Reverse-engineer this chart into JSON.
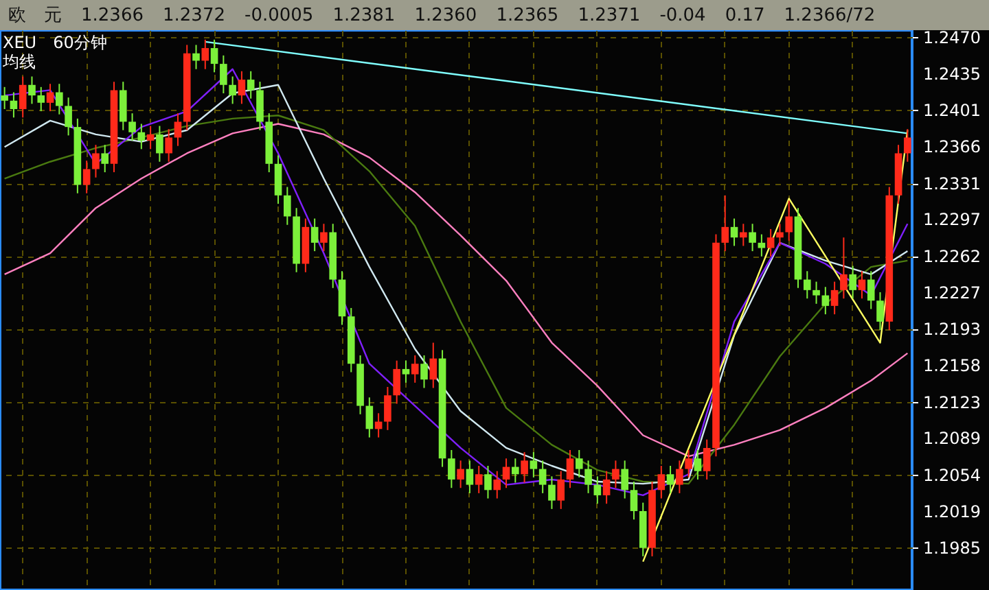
{
  "chart_data": {
    "type": "candlestick",
    "title": "XEU　60分钟",
    "subtitle": "均线",
    "annotations": [
      "欧　元",
      "1.2366",
      "1.2372",
      "-0.0005",
      "1.2381",
      "1.2360",
      "1.2365",
      "1.2371",
      "-0.04",
      "0.17",
      "1.2366/72"
    ],
    "categories": [
      null,
      null,
      null,
      null,
      null,
      null,
      null,
      null,
      null,
      null,
      null,
      null,
      null,
      null,
      null,
      null,
      null,
      null,
      null,
      null,
      null,
      null,
      null,
      null,
      null,
      null,
      null,
      null,
      null,
      null,
      null,
      null,
      null,
      null,
      null,
      null,
      null,
      null,
      null,
      null,
      null,
      null,
      null,
      null,
      null,
      null,
      null,
      null,
      null,
      null,
      null,
      null,
      null,
      null,
      null,
      null,
      null,
      null,
      null,
      null,
      null,
      null,
      null,
      null,
      null,
      null,
      null,
      null,
      null,
      null,
      null,
      null,
      null,
      null,
      null,
      null,
      null,
      null,
      null,
      null,
      null,
      null,
      null,
      null,
      null,
      null,
      null,
      null,
      null,
      null,
      null,
      null,
      null,
      null,
      null,
      null,
      null,
      null,
      null,
      null
    ],
    "ohlc": [
      [
        1.2415,
        1.2423,
        1.2402,
        1.241
      ],
      [
        1.241,
        1.2418,
        1.2394,
        1.2402
      ],
      [
        1.2402,
        1.2433,
        1.2394,
        1.2425
      ],
      [
        1.2425,
        1.2433,
        1.2407,
        1.2415
      ],
      [
        1.2415,
        1.2423,
        1.24,
        1.2408
      ],
      [
        1.2408,
        1.2426,
        1.24,
        1.2418
      ],
      [
        1.2418,
        1.2426,
        1.2397,
        1.2405
      ],
      [
        1.2405,
        1.2413,
        1.2377,
        1.2385
      ],
      [
        1.2385,
        1.2393,
        1.2322,
        1.233
      ],
      [
        1.233,
        1.2353,
        1.2322,
        1.2345
      ],
      [
        1.2345,
        1.2368,
        1.2337,
        1.236
      ],
      [
        1.236,
        1.2368,
        1.2342,
        1.235
      ],
      [
        1.235,
        1.2428,
        1.2342,
        1.242
      ],
      [
        1.242,
        1.2428,
        1.2382,
        1.239
      ],
      [
        1.239,
        1.2398,
        1.2372,
        1.238
      ],
      [
        1.238,
        1.2388,
        1.2364,
        1.2372
      ],
      [
        1.2372,
        1.2386,
        1.2364,
        1.2378
      ],
      [
        1.2378,
        1.2386,
        1.2352,
        1.236
      ],
      [
        1.236,
        1.2383,
        1.2352,
        1.2375
      ],
      [
        1.2375,
        1.2398,
        1.2367,
        1.239
      ],
      [
        1.239,
        1.2463,
        1.2382,
        1.2455
      ],
      [
        1.2455,
        1.2463,
        1.244,
        1.2448
      ],
      [
        1.2448,
        1.2468,
        1.244,
        1.246
      ],
      [
        1.246,
        1.2468,
        1.2437,
        1.2445
      ],
      [
        1.2445,
        1.2453,
        1.2417,
        1.2425
      ],
      [
        1.2425,
        1.2433,
        1.2407,
        1.2415
      ],
      [
        1.2415,
        1.2438,
        1.2407,
        1.243
      ],
      [
        1.243,
        1.2438,
        1.2412,
        1.242
      ],
      [
        1.242,
        1.2428,
        1.2382,
        1.239
      ],
      [
        1.239,
        1.2398,
        1.2342,
        1.235
      ],
      [
        1.235,
        1.2358,
        1.2312,
        1.232
      ],
      [
        1.232,
        1.2328,
        1.2292,
        1.23
      ],
      [
        1.23,
        1.2308,
        1.2247,
        1.2255
      ],
      [
        1.2255,
        1.2298,
        1.2247,
        1.229
      ],
      [
        1.229,
        1.2298,
        1.2267,
        1.2275
      ],
      [
        1.2275,
        1.2293,
        1.2267,
        1.2285
      ],
      [
        1.2285,
        1.2293,
        1.2232,
        1.224
      ],
      [
        1.224,
        1.2248,
        1.2197,
        1.2205
      ],
      [
        1.2205,
        1.2213,
        1.2152,
        1.216
      ],
      [
        1.216,
        1.2168,
        1.2112,
        1.212
      ],
      [
        1.212,
        1.2128,
        1.209,
        1.2098
      ],
      [
        1.2098,
        1.2113,
        1.209,
        1.2105
      ],
      [
        1.2105,
        1.2138,
        1.2097,
        1.213
      ],
      [
        1.213,
        1.2163,
        1.2122,
        1.2155
      ],
      [
        1.2155,
        1.2163,
        1.2142,
        1.215
      ],
      [
        1.215,
        1.2168,
        1.2142,
        1.216
      ],
      [
        1.216,
        1.2168,
        1.2137,
        1.2145
      ],
      [
        1.2145,
        1.218,
        1.2137,
        1.2165
      ],
      [
        1.2165,
        1.2173,
        1.2062,
        1.207
      ],
      [
        1.207,
        1.2078,
        1.2042,
        1.205
      ],
      [
        1.205,
        1.2068,
        1.2042,
        1.206
      ],
      [
        1.206,
        1.2068,
        1.2037,
        1.2045
      ],
      [
        1.2045,
        1.2063,
        1.2037,
        1.2055
      ],
      [
        1.2055,
        1.2063,
        1.2032,
        1.204
      ],
      [
        1.204,
        1.2058,
        1.2032,
        1.205
      ],
      [
        1.205,
        1.207,
        1.2042,
        1.2062
      ],
      [
        1.2062,
        1.207,
        1.2047,
        1.2055
      ],
      [
        1.2055,
        1.2076,
        1.2047,
        1.2068
      ],
      [
        1.2068,
        1.2076,
        1.2052,
        1.206
      ],
      [
        1.206,
        1.2068,
        1.2037,
        1.2045
      ],
      [
        1.2045,
        1.2053,
        1.2022,
        1.203
      ],
      [
        1.203,
        1.2058,
        1.2022,
        1.205
      ],
      [
        1.205,
        1.2078,
        1.2042,
        1.207
      ],
      [
        1.207,
        1.2078,
        1.2052,
        1.206
      ],
      [
        1.206,
        1.2068,
        1.2037,
        1.2045
      ],
      [
        1.2045,
        1.2053,
        1.2027,
        1.2035
      ],
      [
        1.2035,
        1.2058,
        1.2027,
        1.205
      ],
      [
        1.205,
        1.2068,
        1.2042,
        1.206
      ],
      [
        1.206,
        1.2068,
        1.2032,
        1.204
      ],
      [
        1.204,
        1.2048,
        1.2012,
        1.202
      ],
      [
        1.202,
        1.2028,
        1.1977,
        1.1985
      ],
      [
        1.1985,
        1.2048,
        1.1977,
        1.204
      ],
      [
        1.204,
        1.2063,
        1.2032,
        1.2055
      ],
      [
        1.2055,
        1.2063,
        1.2037,
        1.2045
      ],
      [
        1.2045,
        1.2068,
        1.2037,
        1.206
      ],
      [
        1.206,
        1.2078,
        1.2052,
        1.207
      ],
      [
        1.207,
        1.2078,
        1.205,
        1.2058
      ],
      [
        1.2058,
        1.2088,
        1.205,
        1.208
      ],
      [
        1.208,
        1.2283,
        1.2072,
        1.2275
      ],
      [
        1.2275,
        1.232,
        1.2267,
        1.229
      ],
      [
        1.229,
        1.2298,
        1.2272,
        1.228
      ],
      [
        1.228,
        1.2293,
        1.2272,
        1.2285
      ],
      [
        1.2285,
        1.2293,
        1.2267,
        1.2275
      ],
      [
        1.2275,
        1.2283,
        1.2262,
        1.227
      ],
      [
        1.227,
        1.2288,
        1.2262,
        1.228
      ],
      [
        1.228,
        1.2293,
        1.2272,
        1.2285
      ],
      [
        1.2285,
        1.2315,
        1.2277,
        1.23
      ],
      [
        1.23,
        1.2308,
        1.2232,
        1.224
      ],
      [
        1.224,
        1.2248,
        1.2222,
        1.223
      ],
      [
        1.223,
        1.2238,
        1.2217,
        1.2225
      ],
      [
        1.2225,
        1.2233,
        1.2207,
        1.2215
      ],
      [
        1.2215,
        1.2238,
        1.2207,
        1.223
      ],
      [
        1.223,
        1.228,
        1.2222,
        1.2245
      ],
      [
        1.2245,
        1.2253,
        1.2222,
        1.223
      ],
      [
        1.223,
        1.2248,
        1.2222,
        1.224
      ],
      [
        1.224,
        1.2248,
        1.2212,
        1.222
      ],
      [
        1.222,
        1.2228,
        1.2192,
        1.22
      ],
      [
        1.22,
        1.2328,
        1.2192,
        1.232
      ],
      [
        1.232,
        1.2368,
        1.2312,
        1.236
      ],
      [
        1.236,
        1.2383,
        1.2352,
        1.2375
      ]
    ],
    "series": [
      {
        "type": "line",
        "color": "#ff80c0",
        "values": [
          1.2245,
          null,
          null,
          null,
          null,
          1.2265,
          null,
          null,
          null,
          null,
          1.2308,
          null,
          null,
          null,
          null,
          1.2336,
          null,
          null,
          null,
          null,
          1.236,
          null,
          null,
          null,
          null,
          1.2379,
          null,
          null,
          null,
          null,
          1.2388,
          null,
          null,
          null,
          null,
          1.2378,
          null,
          null,
          null,
          null,
          1.2356,
          null,
          null,
          null,
          null,
          1.2323,
          null,
          null,
          null,
          null,
          1.2282,
          null,
          null,
          null,
          null,
          1.2239,
          null,
          null,
          null,
          null,
          1.218,
          null,
          null,
          null,
          null,
          1.2139,
          null,
          null,
          null,
          null,
          1.2092,
          null,
          null,
          null,
          null,
          1.2072,
          null,
          null,
          null,
          null,
          1.2083,
          null,
          null,
          null,
          null,
          1.2097,
          null,
          null,
          null,
          null,
          1.2118,
          null,
          null,
          null,
          null,
          1.2144,
          null,
          null,
          null,
          1.217
        ]
      },
      {
        "type": "line",
        "color": "#4a7a10",
        "values": [
          1.2336,
          null,
          null,
          null,
          null,
          1.2352,
          null,
          null,
          null,
          null,
          1.2365,
          null,
          null,
          null,
          null,
          1.2375,
          null,
          null,
          null,
          null,
          1.2386,
          null,
          null,
          null,
          null,
          1.2393,
          null,
          null,
          null,
          null,
          1.2396,
          null,
          null,
          null,
          null,
          1.2382,
          null,
          null,
          null,
          null,
          1.2343,
          null,
          null,
          null,
          null,
          1.2291,
          null,
          null,
          null,
          null,
          1.22,
          null,
          null,
          null,
          null,
          1.2118,
          null,
          null,
          null,
          null,
          1.2083,
          null,
          null,
          null,
          null,
          1.2059,
          null,
          null,
          null,
          null,
          1.2048,
          null,
          null,
          null,
          null,
          1.2046,
          null,
          null,
          null,
          null,
          1.2102,
          null,
          null,
          null,
          null,
          1.2167,
          null,
          null,
          null,
          null,
          1.2217,
          null,
          null,
          null,
          null,
          1.2252,
          null,
          null,
          null,
          1.2258
        ]
      },
      {
        "type": "line",
        "color": "#d0e8f0",
        "values": [
          1.2366,
          null,
          null,
          null,
          null,
          1.2391,
          null,
          null,
          null,
          null,
          1.2378,
          null,
          null,
          null,
          null,
          1.2371,
          null,
          null,
          null,
          null,
          1.2382,
          null,
          null,
          null,
          null,
          1.2417,
          null,
          null,
          null,
          null,
          1.2425,
          null,
          null,
          null,
          null,
          1.2336,
          null,
          null,
          null,
          null,
          1.2252,
          null,
          null,
          null,
          null,
          1.2174,
          null,
          null,
          null,
          null,
          1.2115,
          null,
          null,
          null,
          null,
          1.208,
          null,
          null,
          null,
          null,
          1.2063,
          null,
          null,
          null,
          null,
          1.2048,
          null,
          null,
          null,
          null,
          1.2046,
          null,
          null,
          null,
          null,
          1.205,
          null,
          null,
          null,
          null,
          1.2187,
          null,
          null,
          null,
          null,
          1.2275,
          null,
          null,
          null,
          null,
          1.2258,
          null,
          null,
          null,
          null,
          1.2245,
          null,
          null,
          null,
          1.2267
        ]
      },
      {
        "type": "line",
        "color": "#8020ff",
        "values": [
          1.2415,
          null,
          null,
          null,
          null,
          1.242,
          null,
          null,
          null,
          null,
          1.235,
          null,
          null,
          null,
          null,
          1.2385,
          null,
          null,
          null,
          null,
          1.24,
          null,
          null,
          null,
          null,
          1.244,
          null,
          null,
          null,
          null,
          1.236,
          null,
          null,
          null,
          null,
          1.2265,
          null,
          null,
          null,
          null,
          1.216,
          null,
          null,
          null,
          null,
          1.212,
          null,
          null,
          null,
          null,
          1.208,
          null,
          null,
          null,
          null,
          1.2045,
          null,
          null,
          null,
          null,
          1.205,
          null,
          null,
          null,
          null,
          1.2045,
          null,
          null,
          null,
          null,
          1.2035,
          null,
          null,
          null,
          null,
          1.2055,
          null,
          null,
          null,
          null,
          1.22,
          null,
          null,
          null,
          null,
          1.2275,
          null,
          null,
          null,
          null,
          1.2255,
          null,
          null,
          null,
          null,
          1.2225,
          null,
          null,
          null,
          1.2293
        ]
      },
      {
        "type": "line",
        "color": "#80ffff",
        "values": [
          null,
          null,
          null,
          null,
          null,
          null,
          null,
          null,
          null,
          null,
          null,
          null,
          null,
          null,
          null,
          null,
          null,
          null,
          null,
          null,
          null,
          null,
          1.2466,
          null,
          null,
          null,
          null,
          null,
          null,
          null,
          null,
          null,
          null,
          null,
          null,
          null,
          null,
          null,
          null,
          null,
          null,
          null,
          null,
          null,
          null,
          null,
          null,
          null,
          null,
          null,
          null,
          null,
          null,
          null,
          null,
          null,
          null,
          null,
          null,
          null,
          null,
          null,
          null,
          null,
          null,
          null,
          null,
          null,
          null,
          null,
          null,
          null,
          null,
          null,
          null,
          null,
          null,
          null,
          null,
          null,
          null,
          null,
          null,
          null,
          null,
          null,
          null,
          null,
          null,
          null,
          null,
          null,
          null,
          null,
          null,
          null,
          null,
          null,
          null,
          1.2379
        ]
      },
      {
        "type": "line",
        "color": "#ffff60",
        "values": [
          null,
          null,
          null,
          null,
          null,
          null,
          null,
          null,
          null,
          null,
          null,
          null,
          null,
          null,
          null,
          null,
          null,
          null,
          null,
          null,
          null,
          null,
          null,
          null,
          null,
          null,
          null,
          null,
          null,
          null,
          null,
          null,
          null,
          null,
          null,
          null,
          null,
          null,
          null,
          null,
          null,
          null,
          null,
          null,
          null,
          null,
          null,
          null,
          null,
          null,
          null,
          null,
          null,
          null,
          null,
          null,
          null,
          null,
          null,
          null,
          null,
          null,
          null,
          null,
          null,
          null,
          null,
          null,
          null,
          null,
          1.1972,
          null,
          null,
          null,
          null,
          null,
          null,
          null,
          null,
          null,
          null,
          null,
          null,
          null,
          null,
          null,
          1.2317,
          null,
          null,
          null,
          null,
          null,
          null,
          null,
          null,
          null,
          1.218,
          null,
          null,
          1.2382
        ]
      }
    ],
    "ylim": [
      1.1945,
      1.2477
    ],
    "yticks": [
      {
        "value": 1.247,
        "label": "1.2470"
      },
      1.2435,
      1.2401,
      1.2366,
      1.2331,
      1.2297,
      1.2262,
      1.2227,
      1.2193,
      1.2158,
      1.2123,
      1.2089,
      1.2054,
      1.2019,
      1.1985
    ],
    "tick_labels": "y",
    "grid": true
  }
}
